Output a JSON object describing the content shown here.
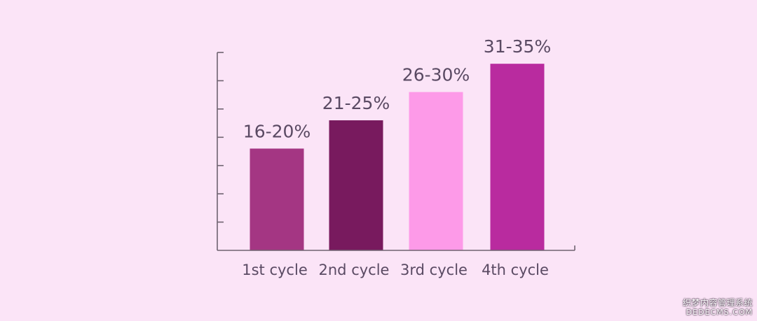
{
  "chart_data": {
    "type": "bar",
    "categories": [
      "1st cycle",
      "2nd cycle",
      "3rd cycle",
      "4th cycle"
    ],
    "values": [
      18,
      23,
      28,
      33
    ],
    "data_labels": [
      "16-20%",
      "21-25%",
      "26-30%",
      "31-35%"
    ],
    "colors": [
      "#a43683",
      "#781a5e",
      "#fd9ae8",
      "#b92b9f"
    ],
    "ylim": [
      0,
      35
    ],
    "y_ticks_labeled": false,
    "grid": false,
    "legend": "none",
    "background": "#fbe4f7"
  },
  "watermark": {
    "line1": "织梦内容管理系统",
    "line2": "DEDECMS.COM"
  }
}
